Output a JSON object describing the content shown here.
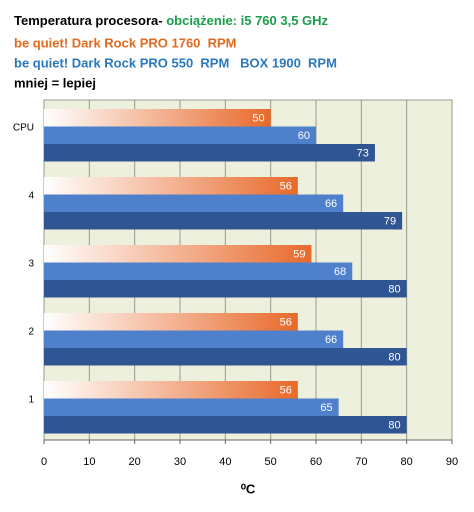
{
  "chart_data": {
    "type": "bar",
    "orientation": "horizontal",
    "title_parts": [
      {
        "text": "Temperatura procesora- ",
        "color": "#000000"
      },
      {
        "text": "obciążenie: i5 760 3,5 GHz",
        "color": "#1a9e4a"
      }
    ],
    "subtitles": [
      {
        "text": "be quiet! Dark Rock PRO 1760  RPM",
        "color": "#e06a1e"
      },
      {
        "text": "be quiet! Dark Rock PRO 550  RPM   BOX 1900  RPM",
        "color": "#2a78bd"
      },
      {
        "text": "mniej = lepiej",
        "color": "#000000"
      }
    ],
    "categories": [
      "CPU",
      "4",
      "3",
      "2",
      "1"
    ],
    "series": [
      {
        "color": "#e8692a",
        "values": [
          50,
          56,
          59,
          56,
          56
        ]
      },
      {
        "color": "#4f80cc",
        "values": [
          60,
          66,
          68,
          66,
          65
        ]
      },
      {
        "color": "#2f5593",
        "values": [
          73,
          79,
          80,
          80,
          80
        ]
      }
    ],
    "xlim": [
      0,
      90
    ],
    "xticks": [
      0,
      10,
      20,
      30,
      40,
      50,
      60,
      70,
      80,
      90
    ],
    "x_label": "⁰C",
    "grid": true,
    "plot_background": "#eef0de"
  }
}
